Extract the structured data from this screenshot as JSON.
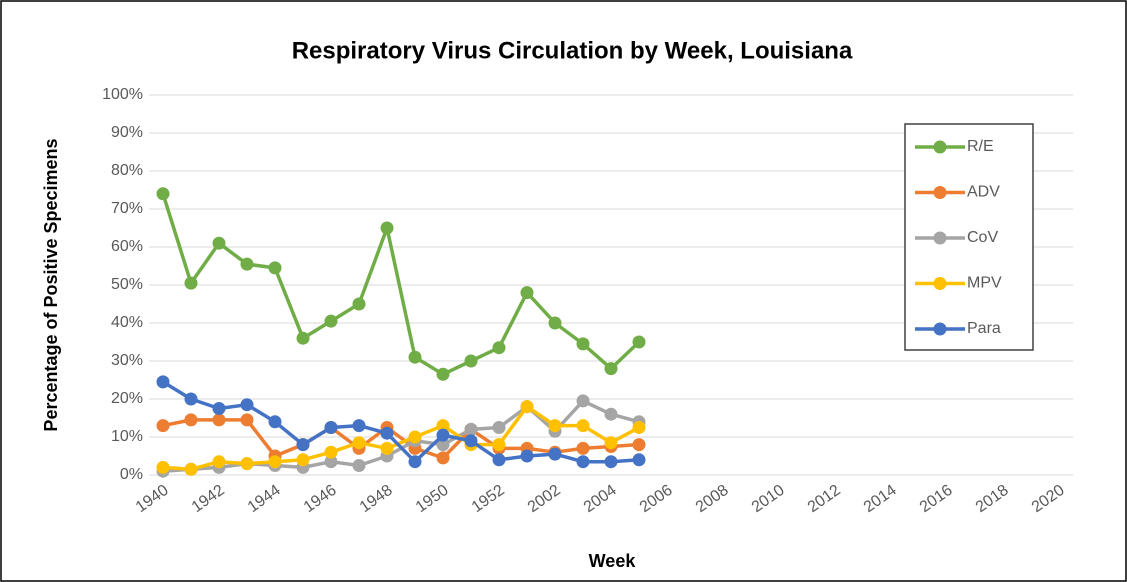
{
  "chart_data": {
    "type": "line",
    "title": "Respiratory Virus Circulation by Week, Louisiana",
    "x_label": "Week",
    "y_label": "Percentage of Positive Specimens",
    "categories": [
      "1940",
      null,
      "1942",
      null,
      "1944",
      null,
      "1946",
      null,
      "1948",
      null,
      "1950",
      null,
      "1952",
      null,
      "2002",
      null,
      "2004",
      null,
      "2006",
      null,
      "2008",
      null,
      "2010",
      null,
      "2012",
      null,
      "2014",
      null,
      "2016",
      null,
      "2018",
      null,
      "2020"
    ],
    "series": [
      {
        "name": "R/E",
        "color": "#70ad47",
        "values": [
          74,
          50.5,
          61,
          55.5,
          54.5,
          36,
          40.5,
          45,
          65,
          31,
          26.5,
          30,
          33.5,
          48,
          40,
          34.5,
          28,
          35,
          null,
          null,
          null,
          null,
          null,
          null,
          null,
          null,
          null,
          null,
          null,
          null,
          null,
          null,
          null
        ]
      },
      {
        "name": "ADV",
        "color": "#ed7d31",
        "values": [
          13,
          14.5,
          14.5,
          14.5,
          5,
          8,
          12.5,
          7,
          12.5,
          7,
          4.5,
          12,
          7,
          7,
          6,
          7,
          7.5,
          8,
          null,
          null,
          null,
          null,
          null,
          null,
          null,
          null,
          null,
          null,
          null,
          null,
          null,
          null,
          null
        ]
      },
      {
        "name": "CoV",
        "color": "#a5a5a5",
        "values": [
          1,
          1.5,
          2,
          3,
          2.5,
          2,
          3.5,
          2.5,
          5,
          9,
          8,
          12,
          12.5,
          18,
          11.5,
          19.5,
          16,
          14,
          null,
          null,
          null,
          null,
          null,
          null,
          null,
          null,
          null,
          null,
          null,
          null,
          null,
          null,
          null
        ]
      },
      {
        "name": "MPV",
        "color": "#ffc000",
        "values": [
          2,
          1.5,
          3.5,
          3,
          3.5,
          4,
          6,
          8.5,
          7,
          10,
          13,
          8,
          8,
          18,
          13,
          13,
          8.5,
          12.5,
          null,
          null,
          null,
          null,
          null,
          null,
          null,
          null,
          null,
          null,
          null,
          null,
          null,
          null,
          null
        ]
      },
      {
        "name": "Para",
        "color": "#4472c4",
        "values": [
          24.5,
          20,
          17.5,
          18.5,
          14,
          8,
          12.5,
          13,
          11,
          3.5,
          10.5,
          9,
          4,
          5,
          5.5,
          3.5,
          3.5,
          4,
          null,
          null,
          null,
          null,
          null,
          null,
          null,
          null,
          null,
          null,
          null,
          null,
          null,
          null,
          null
        ]
      }
    ],
    "ylim": [
      0,
      100
    ],
    "yticks": [
      {
        "value": 0,
        "label": "0%"
      },
      {
        "value": 10,
        "label": "10%"
      },
      {
        "value": 20,
        "label": "20%"
      },
      {
        "value": 30,
        "label": "30%"
      },
      {
        "value": 40,
        "label": "40%"
      },
      {
        "value": 50,
        "label": "50%"
      },
      {
        "value": 60,
        "label": "60%"
      },
      {
        "value": 70,
        "label": "70%"
      },
      {
        "value": 80,
        "label": "80%"
      },
      {
        "value": 90,
        "label": "90%"
      },
      {
        "value": 100,
        "label": "100%"
      }
    ],
    "grid": true,
    "legend": "right"
  }
}
